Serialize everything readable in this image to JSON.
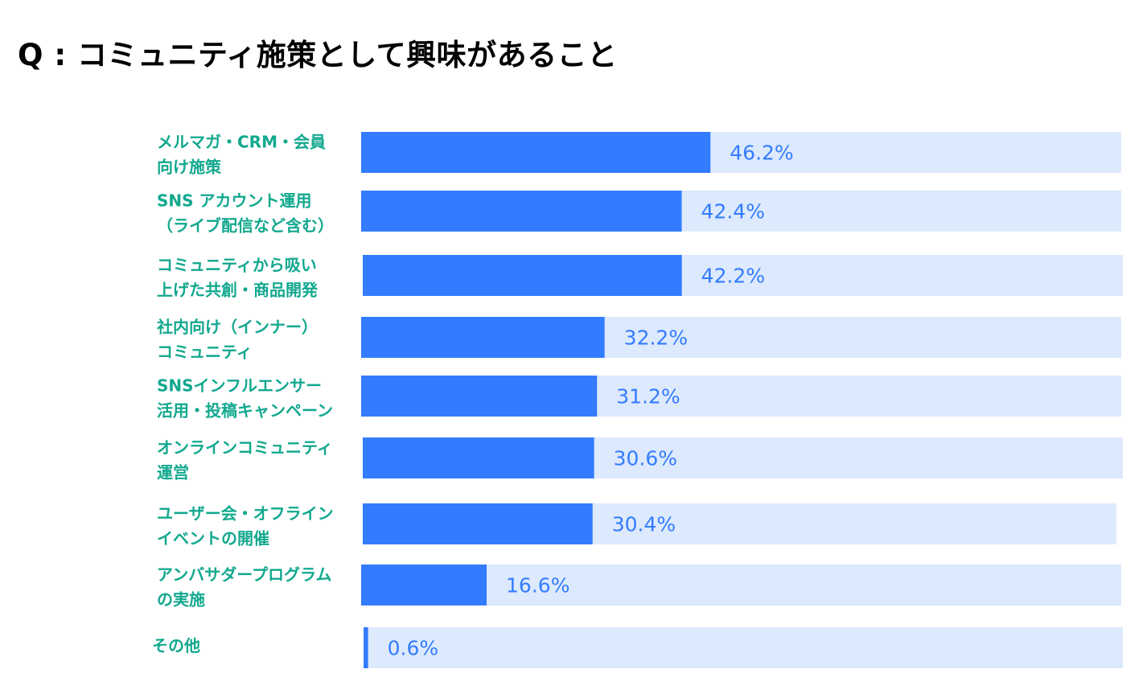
{
  "chart_data": {
    "type": "bar",
    "orientation": "horizontal",
    "title": "Q : コミュニティ施策として興味があること",
    "xlim": [
      0,
      100
    ],
    "unit": "%",
    "categories": [
      [
        "メルマガ・CRM・会員",
        "向け施策"
      ],
      [
        "SNS アカウント運用",
        "（ライブ配信など含む）"
      ],
      [
        "コミュニティから吸い",
        "上げた共創・商品開発"
      ],
      [
        "社内向け（インナー）",
        "コミュニティ"
      ],
      [
        "SNSインフルエンサー",
        "活用・投稿キャンペーン"
      ],
      [
        "オンラインコミュニティ",
        "運営"
      ],
      [
        "ユーザー会・オフライン",
        "イベントの開催"
      ],
      [
        "アンバサダープログラム",
        "の実施"
      ],
      [
        "その他"
      ]
    ],
    "values": [
      46.2,
      42.4,
      42.2,
      32.2,
      31.2,
      30.6,
      30.4,
      16.6,
      0.6
    ],
    "value_labels": [
      "46.2%",
      "42.4%",
      "42.2%",
      "32.2%",
      "31.2%",
      "30.6%",
      "30.4%",
      "16.6%",
      "0.6%"
    ]
  },
  "colors": {
    "bar": "#337cff",
    "track": "#dde9fd",
    "label": "#12a88e",
    "value": "#337cff",
    "title": "#000000"
  }
}
